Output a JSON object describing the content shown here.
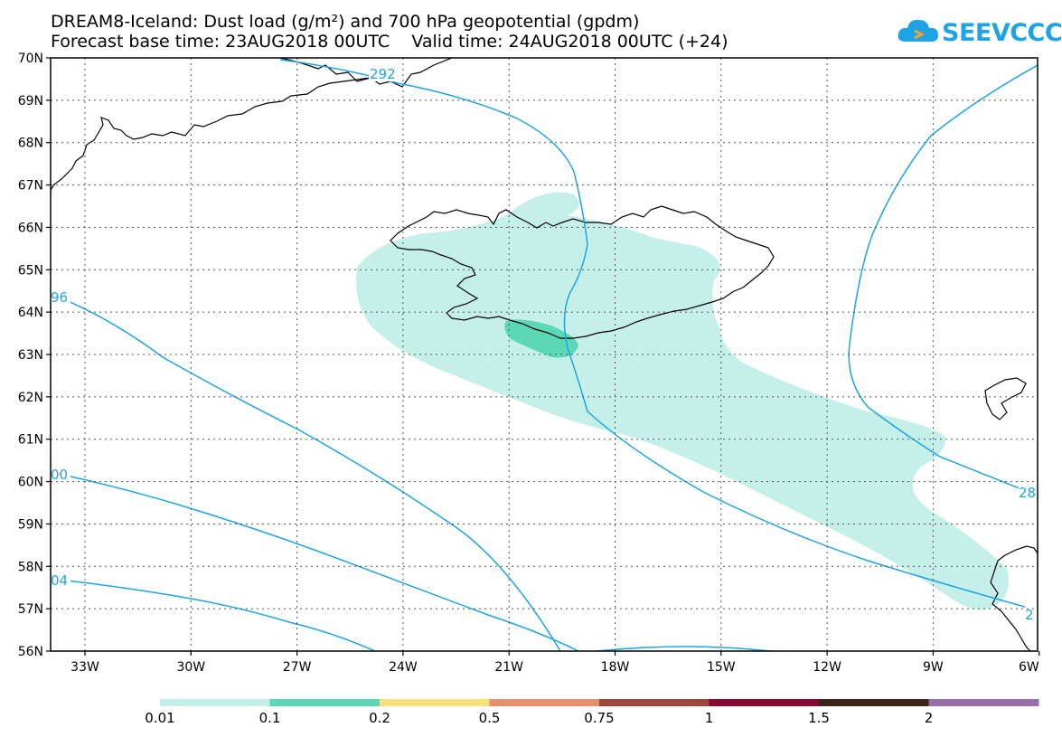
{
  "title_line1": "DREAM8-Iceland: Dust load (g/m²) and 700 hPa geopotential (gpdm)",
  "title_line2": "Forecast base time: 23AUG2018 00UTC    Valid time: 24AUG2018 00UTC (+24)",
  "logo_text": "SEEVCCC",
  "map": {
    "lat_labels": [
      "70N",
      "69N",
      "68N",
      "67N",
      "66N",
      "65N",
      "64N",
      "63N",
      "62N",
      "61N",
      "60N",
      "59N",
      "58N",
      "57N",
      "56N"
    ],
    "lon_labels": [
      "33W",
      "30W",
      "27W",
      "24W",
      "21W",
      "18W",
      "15W",
      "12W",
      "9W",
      "6W"
    ],
    "contour_labels": [
      "292",
      "96",
      "00",
      "04",
      "28",
      "2"
    ],
    "land_regions": [
      "Greenland",
      "Iceland",
      "Faroe Islands",
      "Scotland"
    ]
  },
  "colorbar": {
    "labels": [
      "0.01",
      "0.1",
      "0.2",
      "0.5",
      "0.75",
      "1",
      "1.5",
      "2"
    ],
    "colors": [
      "#c5f0ea",
      "#5ad9b4",
      "#f7e17a",
      "#e6906c",
      "#a0463e",
      "#870a30",
      "#3b2516",
      "#9b6faa"
    ]
  },
  "colors": {
    "contour": "#1ea4e6",
    "dust_light": "#c5f0ea",
    "dust_medium": "#5ad9b4"
  }
}
